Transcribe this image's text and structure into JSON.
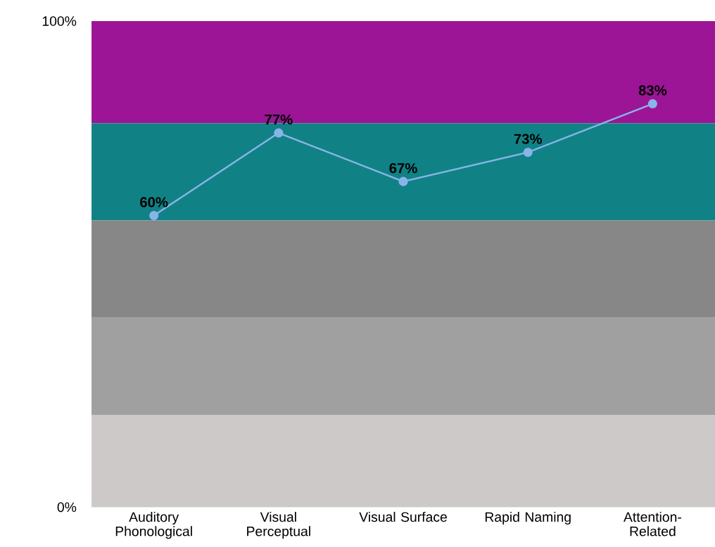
{
  "chart_data": {
    "type": "line",
    "categories": [
      "Auditory Phonological",
      "Visual Perceptual",
      "Visual Surface",
      "Rapid Naming",
      "Attention-Related"
    ],
    "series": [
      {
        "color": "#8ab4e8",
        "values": [
          60,
          77,
          67,
          73,
          83
        ],
        "value_labels": [
          "60%",
          "77%",
          "67%",
          "73%",
          "83%"
        ]
      }
    ],
    "ylim": [
      0,
      100
    ],
    "yticks": [
      {
        "value": 0,
        "label": "0%"
      },
      {
        "value": 100,
        "label": "100%"
      }
    ],
    "bands": [
      {
        "axis": "y",
        "from": 0,
        "to": 19,
        "color": "#cdc9c9"
      },
      {
        "axis": "y",
        "from": 19,
        "to": 39,
        "color": "#a0a0a0"
      },
      {
        "axis": "y",
        "from": 39,
        "to": 59,
        "color": "#878787"
      },
      {
        "axis": "y",
        "from": 59,
        "to": 79,
        "color": "#108286"
      },
      {
        "axis": "y",
        "from": 79,
        "to": 100,
        "color": "#9c1597"
      }
    ],
    "marker": "circle",
    "line_style": "solid"
  }
}
